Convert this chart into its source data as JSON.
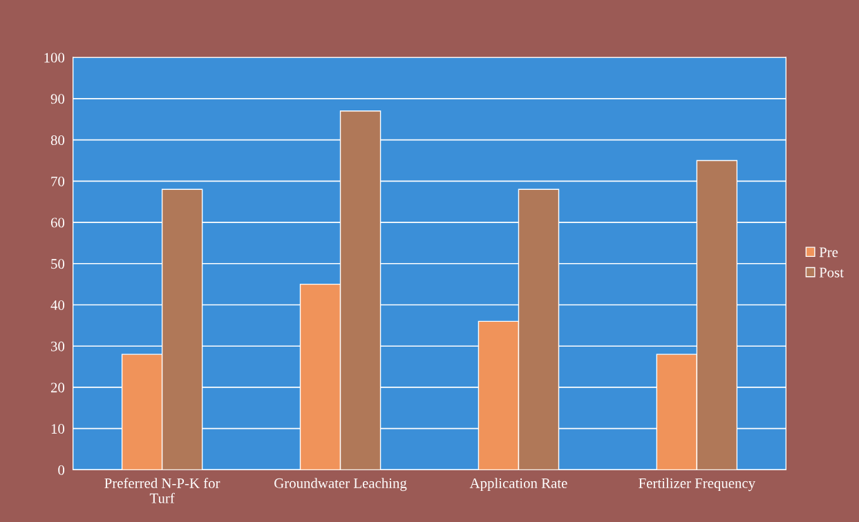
{
  "chart_data": {
    "type": "bar",
    "categories": [
      "Preferred N-P-K for\nTurf",
      "Groundwater Leaching",
      "Application Rate",
      "Fertilizer Frequency"
    ],
    "series": [
      {
        "name": "Pre",
        "color": "#f0935a",
        "values": [
          28,
          45,
          36,
          28
        ]
      },
      {
        "name": "Post",
        "color": "#b07858",
        "values": [
          68,
          87,
          68,
          75
        ]
      }
    ],
    "ylim": [
      0,
      100
    ],
    "yticks": [
      0,
      10,
      20,
      30,
      40,
      50,
      60,
      70,
      80,
      90,
      100
    ],
    "grid": "y",
    "legend": "right"
  }
}
